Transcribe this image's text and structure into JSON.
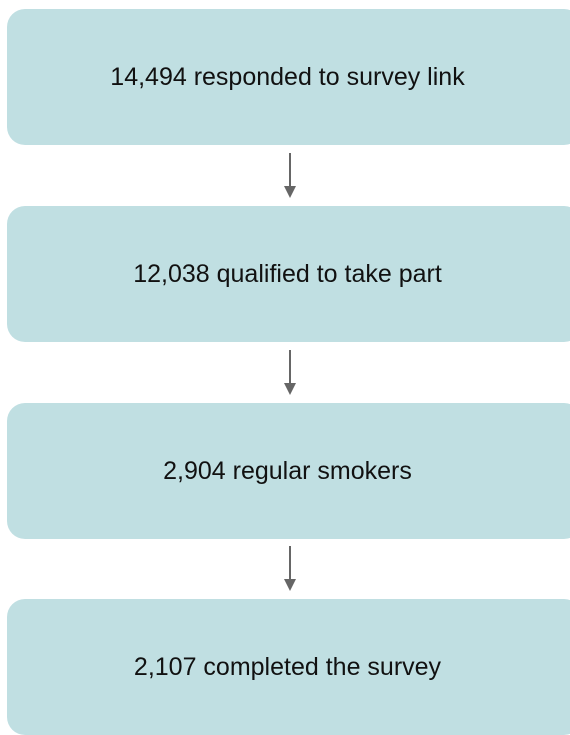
{
  "flowchart": {
    "steps": [
      {
        "label": "14,494 responded to survey link"
      },
      {
        "label": "12,038 qualified to take part"
      },
      {
        "label": "2,904 regular smokers"
      },
      {
        "label": "2,107 completed the survey"
      }
    ]
  },
  "colors": {
    "box_fill": "#c0dfe2",
    "arrow": "#666666",
    "text": "#111111"
  }
}
